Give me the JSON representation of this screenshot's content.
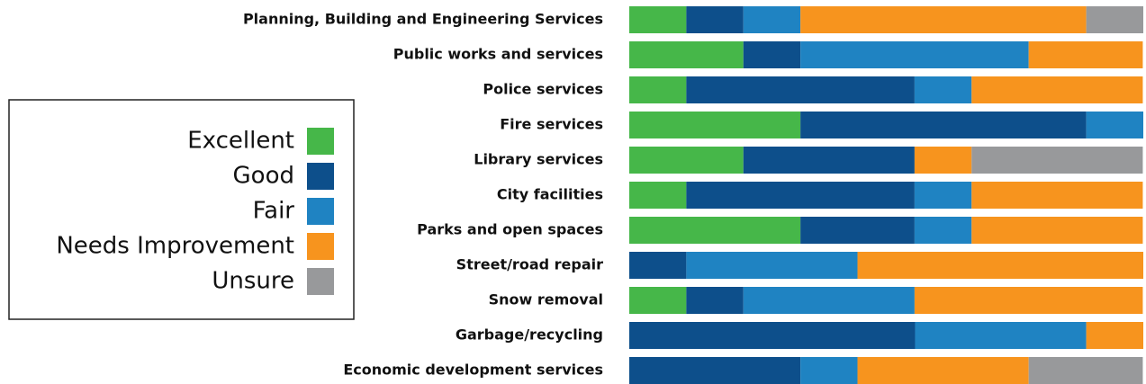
{
  "chart_data": {
    "type": "stacked_bar_horizontal",
    "categories": [
      "Planning, Building and Engineering Services",
      "Public works and services",
      "Police services",
      "Fire services",
      "Library services",
      "City facilities",
      "Parks and open spaces",
      "Street/road repair",
      "Snow removal",
      "Garbage/recycling",
      "Economic development services"
    ],
    "xlim": [
      0,
      100
    ],
    "legend": "left",
    "series": [
      {
        "name": "Excellent",
        "color": "#46b749",
        "values": [
          11.1,
          22.2,
          11.1,
          33.3,
          22.2,
          11.1,
          33.3,
          0,
          11.1,
          0,
          0
        ]
      },
      {
        "name": "Good",
        "color": "#0d4f8b",
        "values": [
          11.1,
          11.1,
          44.4,
          55.6,
          33.3,
          44.4,
          22.2,
          11.1,
          11.1,
          55.6,
          33.3
        ]
      },
      {
        "name": "Fair",
        "color": "#1f83c2",
        "values": [
          11.1,
          44.4,
          11.1,
          11.1,
          0,
          11.1,
          11.1,
          33.3,
          33.3,
          33.3,
          11.1
        ]
      },
      {
        "name": "Needs Improvement",
        "color": "#f7941e",
        "values": [
          55.6,
          22.2,
          33.3,
          0,
          11.1,
          33.3,
          33.3,
          55.6,
          44.4,
          11.1,
          33.3
        ]
      },
      {
        "name": "Unsure",
        "color": "#98999b",
        "values": [
          11.1,
          0,
          0,
          0,
          33.3,
          0,
          0,
          0,
          0,
          0,
          22.2
        ]
      }
    ]
  }
}
